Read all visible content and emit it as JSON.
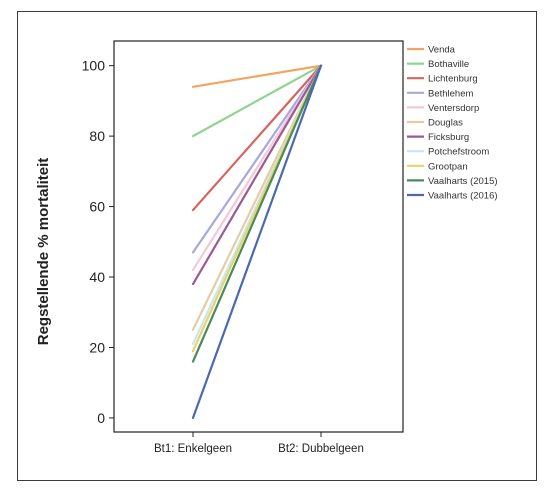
{
  "chart_data": {
    "type": "line",
    "categories": [
      "Bt1: Enkelgeen",
      "Bt2: Dubbelgeen"
    ],
    "ylabel": "Regstellende % mortaliteit",
    "xlabel": "",
    "title": "",
    "yticks": [
      0,
      20,
      40,
      60,
      80,
      100
    ],
    "ylim": [
      -4,
      107
    ],
    "grid": false,
    "legend_position": "right",
    "series": [
      {
        "name": "Venda",
        "color": "#f4a460",
        "values": [
          94,
          100
        ]
      },
      {
        "name": "Bothaville",
        "color": "#8fd48f",
        "values": [
          80,
          100
        ]
      },
      {
        "name": "Lichtenburg",
        "color": "#d9625d",
        "values": [
          59,
          100
        ]
      },
      {
        "name": "Bethlehem",
        "color": "#a8a8e0",
        "values": [
          47,
          100
        ]
      },
      {
        "name": "Ventersdorp",
        "color": "#f2c9d6",
        "values": [
          42,
          100
        ]
      },
      {
        "name": "Douglas",
        "color": "#e3cda6",
        "values": [
          25,
          100
        ]
      },
      {
        "name": "Ficksburg",
        "color": "#9a5a9a",
        "values": [
          38,
          100
        ]
      },
      {
        "name": "Potchefstroom",
        "color": "#c9e6ee",
        "values": [
          21,
          100
        ]
      },
      {
        "name": "Grootpan",
        "color": "#e8d26a",
        "values": [
          19,
          100
        ]
      },
      {
        "name": "Vaalharts (2015)",
        "color": "#4a8a5a",
        "values": [
          16,
          100
        ]
      },
      {
        "name": "Vaalharts (2016)",
        "color": "#4a6ab0",
        "values": [
          0,
          100
        ]
      }
    ]
  }
}
